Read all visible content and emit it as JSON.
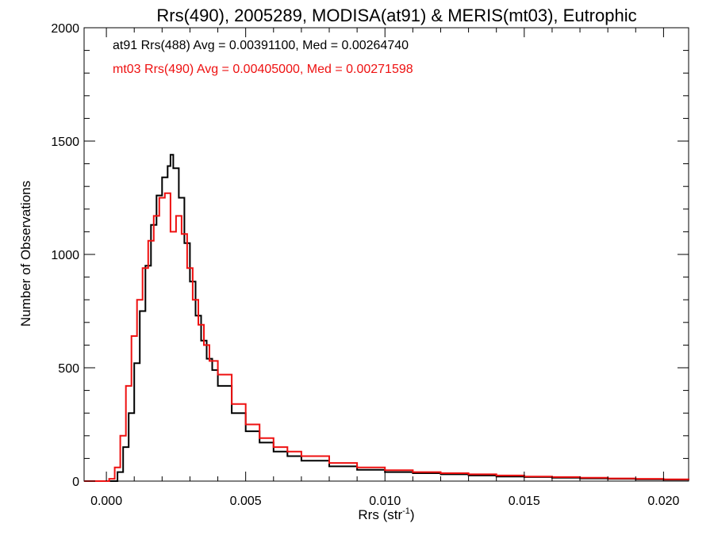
{
  "chart_data": {
    "type": "line",
    "title": "Rrs(490), 2005289, MODISA(at91) & MERIS(mt03), Eutrophic",
    "xlabel_base": "Rrs (str",
    "xlabel_sup": "-1",
    "xlabel_end": ")",
    "ylabel": "Number of Observations",
    "xlim": [
      -0.0008,
      0.0209
    ],
    "ylim": [
      0,
      2000
    ],
    "xticks": [
      0.0,
      0.005,
      0.01,
      0.015,
      0.02
    ],
    "xtick_labels": [
      "0.000",
      "0.005",
      "0.010",
      "0.015",
      "0.020"
    ],
    "yticks": [
      0,
      500,
      1000,
      1500,
      2000
    ],
    "ytick_labels": [
      "0",
      "500",
      "1000",
      "1500",
      "2000"
    ],
    "grid": false,
    "step_plot": true,
    "annotations": [
      {
        "text": "at91 Rrs(488) Avg = 0.00391100, Med = 0.00264740",
        "color": "#000000"
      },
      {
        "text": "mt03 Rrs(490) Avg = 0.00405000, Med = 0.00271598",
        "color": "#ee1111"
      }
    ],
    "series": [
      {
        "color": "#000000",
        "x": [
          -0.0008,
          0.0002,
          0.0004,
          0.0006,
          0.0008,
          0.001,
          0.0012,
          0.0014,
          0.0016,
          0.0018,
          0.002,
          0.0022,
          0.0023,
          0.0024,
          0.0026,
          0.0028,
          0.003,
          0.0032,
          0.0034,
          0.0036,
          0.0038,
          0.004,
          0.0045,
          0.005,
          0.0055,
          0.006,
          0.0065,
          0.007,
          0.008,
          0.009,
          0.01,
          0.011,
          0.012,
          0.013,
          0.014,
          0.015,
          0.016,
          0.017,
          0.018,
          0.019,
          0.02,
          0.0209
        ],
        "y": [
          0,
          0,
          40,
          150,
          300,
          520,
          750,
          950,
          1130,
          1260,
          1340,
          1390,
          1440,
          1380,
          1250,
          1050,
          880,
          730,
          620,
          540,
          490,
          420,
          300,
          220,
          170,
          130,
          110,
          90,
          65,
          50,
          40,
          35,
          30,
          25,
          20,
          18,
          15,
          12,
          10,
          8,
          6,
          5
        ]
      },
      {
        "color": "#ee1111",
        "x": [
          -0.0008,
          0.0001,
          0.0003,
          0.0005,
          0.0007,
          0.0009,
          0.0011,
          0.0013,
          0.0015,
          0.0017,
          0.0019,
          0.0021,
          0.0023,
          0.0025,
          0.0027,
          0.0029,
          0.0031,
          0.0033,
          0.0035,
          0.0037,
          0.004,
          0.0045,
          0.005,
          0.0055,
          0.006,
          0.0065,
          0.007,
          0.008,
          0.009,
          0.01,
          0.011,
          0.012,
          0.013,
          0.014,
          0.015,
          0.016,
          0.017,
          0.018,
          0.019,
          0.02,
          0.0209
        ],
        "y": [
          0,
          10,
          60,
          200,
          420,
          640,
          800,
          940,
          1060,
          1170,
          1250,
          1270,
          1100,
          1170,
          1090,
          940,
          800,
          690,
          600,
          530,
          470,
          340,
          250,
          190,
          150,
          130,
          110,
          80,
          60,
          48,
          40,
          35,
          30,
          25,
          20,
          18,
          15,
          12,
          10,
          8,
          6
        ]
      }
    ]
  }
}
